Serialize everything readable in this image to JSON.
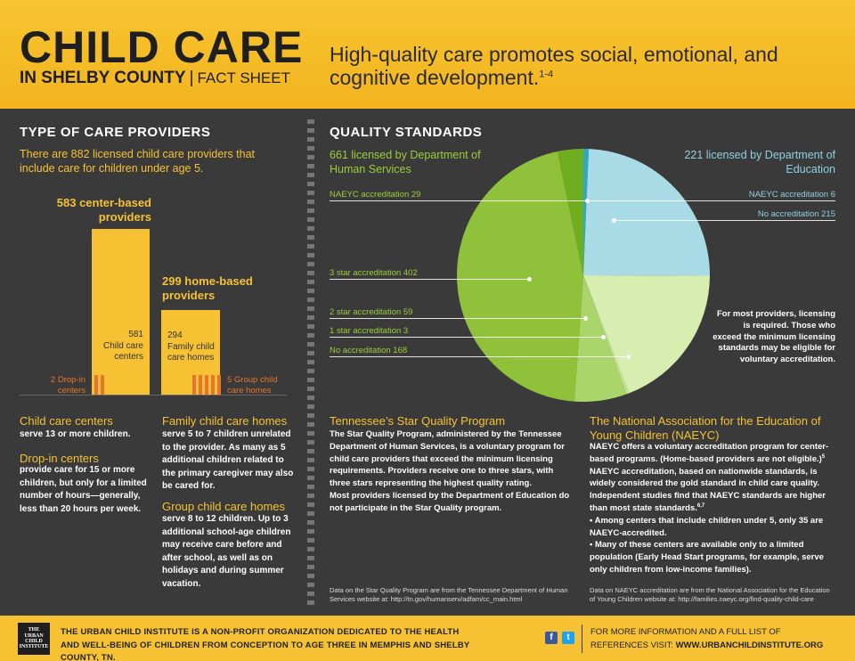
{
  "header": {
    "title": "CHILD CARE",
    "subtitle": "IN SHELBY COUNTY",
    "separator": "|",
    "fact_sheet": "FACT SHEET",
    "tagline": "High-quality care promotes social, emotional, and cognitive development.",
    "tagline_ref": "1-4"
  },
  "providers": {
    "title": "TYPE OF CARE PROVIDERS",
    "intro": "There are 882 licensed child care providers that include care for children under age 5.",
    "center_head": "583 center-based providers",
    "center_count": "581",
    "center_label": "Child care centers",
    "dropin_label": "2 Drop-in centers",
    "home_head": "299 home-based providers",
    "home_count": "294",
    "home_label": "Family child care homes",
    "group_label": "5 Group child care homes",
    "center_total": 583,
    "home_total": 299,
    "dropin_count": 2,
    "group_count": 5
  },
  "definitions": {
    "ccc_title": "Child care centers",
    "ccc_text": "serve 13 or more children.",
    "dropin_title": "Drop-in centers",
    "dropin_text": "provide care for 15 or more children, but only for a limited number of hours—generally, less than 20 hours per week.",
    "fcc_title": "Family child care homes",
    "fcc_text": "serve 5 to 7 children unrelated to the provider. As many as 5 additional children related to the primary caregiver may also be cared for.",
    "gcc_title": "Group child care homes",
    "gcc_text": "serve 8 to 12 children. Up to 3 additional school-age children may receive care before and after school, as well as on holidays and during summer vacation."
  },
  "quality": {
    "title": "QUALITY STANDARDS",
    "dhs_head": "661 licensed by Department of Human Services",
    "doe_head": "221 licensed by Department of Education",
    "labels": {
      "dhs_naeyc": "NAEYC accreditation   29",
      "dhs_3star": "3 star accreditation   402",
      "dhs_2star": "2 star accreditation   59",
      "dhs_1star": "1 star accreditation   3",
      "dhs_none": "No accreditation   168",
      "doe_naeyc": "NAEYC accreditation   6",
      "doe_none": "No accreditation   215"
    },
    "note": "For most providers, licensing is required. Those who exceed the minimum licensing standards may be eligible for voluntary accreditation.",
    "colors": {
      "doe_naeyc": "#2fa8c8",
      "doe_none": "#a8dbe6",
      "dhs_none": "#d8eeb0",
      "dhs_1star": "#c4e393",
      "dhs_2star": "#a9d56a",
      "dhs_3star": "#8fc23a",
      "dhs_naeyc": "#6fae1f"
    }
  },
  "chart_data": {
    "type": "pie",
    "title": "",
    "categories": [
      "Department of Education – NAEYC accreditation",
      "Department of Education – No accreditation",
      "Department of Human Services – No accreditation",
      "Department of Human Services – 1 star accreditation",
      "Department of Human Services – 2 star accreditation",
      "Department of Human Services – 3 star accreditation",
      "Department of Human Services – NAEYC accreditation"
    ],
    "values": [
      6,
      215,
      168,
      3,
      59,
      402,
      29
    ]
  },
  "star_program": {
    "title": "Tennessee’s Star Quality Program",
    "text": "The Star Quality Program, administered by the Tennessee Department of Human Services, is a voluntary program for child care providers that exceed the minimum licensing requirements. Providers receive one to three stars, with three stars representing the highest quality rating.",
    "text2": "Most providers licensed by the Department of Education do not participate in the Star Quality program.",
    "source": "Data on the Star Quality Program are from the Tennessee Department of Human Services website at: http://tn.gov/humanserv/adfam/cc_main.html"
  },
  "naeyc": {
    "title": "The National Association for the Education of Young Children (NAEYC)",
    "text": "NAEYC offers a voluntary accreditation program for center-based programs. (Home-based providers are not eligible.)",
    "ref1": "5",
    "text2": "NAEYC accreditation, based on nationwide standards, is widely considered the gold standard in child care quality. Independent studies find that NAEYC standards are higher than most state standards.",
    "ref2": "6,7",
    "bullet1": "•  Among centers that include children under 5, only 35 are NAEYC-accredited.",
    "bullet2": "•  Many of these centers are available only to a limited population (Early Head Start programs, for example, serve only children from low-income families).",
    "source": "Data on NAEYC accreditation are from the National Association for the Education of Young Children website at: http://families.naeyc.org/find-quality-child-care"
  },
  "footer": {
    "logo": [
      "THE",
      "URBAN",
      "CHILD",
      "INSTITUTE"
    ],
    "text": "THE URBAN CHILD INSTITUTE IS A NON-PROFIT ORGANIZATION DEDICATED TO THE HEALTH AND WELL-BEING OF CHILDREN FROM CONCEPTION TO AGE THREE IN MEMPHIS AND SHELBY COUNTY, TN.",
    "facebook": "f",
    "twitter": "t",
    "right_text": "FOR MORE INFORMATION AND A FULL LIST OF REFERENCES VISIT:",
    "url": "WWW.URBANCHILDINSTITUTE.ORG"
  }
}
